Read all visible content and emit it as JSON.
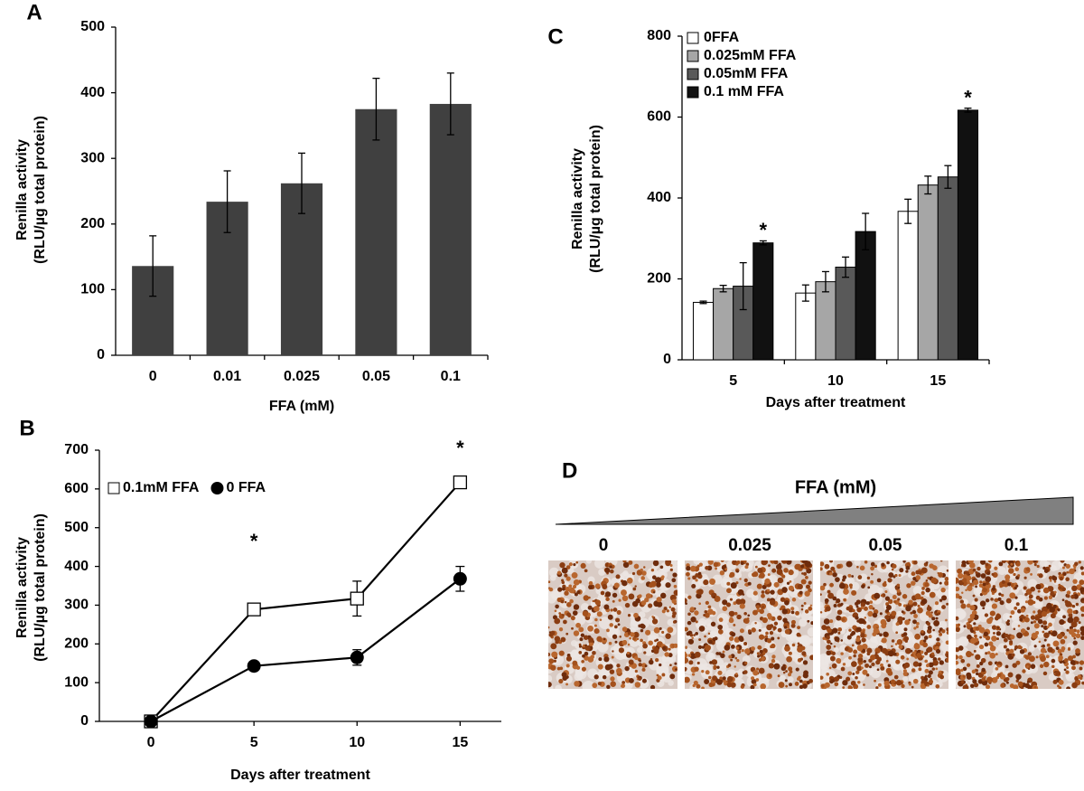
{
  "chart_data": [
    {
      "panel": "A",
      "type": "bar",
      "y_label": [
        "Renilla activity",
        "(RLU/µg total protein)"
      ],
      "x_label": "FFA (mM)",
      "categories": [
        "0",
        "0.01",
        "0.025",
        "0.05",
        "0.1"
      ],
      "values": [
        136,
        234,
        262,
        375,
        383
      ],
      "errors": [
        46,
        47,
        46,
        47,
        47
      ],
      "color": "#404040",
      "ylim": [
        0,
        500
      ],
      "yticks": [
        0,
        100,
        200,
        300,
        400,
        500
      ]
    },
    {
      "panel": "B",
      "type": "line",
      "y_label": [
        "Renilla activity",
        "(RLU/µg total protein)"
      ],
      "x_label": "Days after treatment",
      "x": [
        0,
        5,
        10,
        15
      ],
      "xlim": [
        -2.5,
        17
      ],
      "xticks": [
        0,
        5,
        10,
        15
      ],
      "ylim": [
        0,
        700
      ],
      "yticks": [
        0,
        100,
        200,
        300,
        400,
        500,
        600,
        700
      ],
      "series": [
        {
          "name": "0.1mM FFA",
          "color": "#ffffff",
          "marker": "square",
          "values": [
            0,
            289,
            317,
            617
          ],
          "errors": [
            0,
            5,
            45,
            5
          ]
        },
        {
          "name": "0 FFA",
          "color": "#000000",
          "marker": "circle",
          "values": [
            0,
            143,
            165,
            368
          ],
          "errors": [
            0,
            5,
            20,
            32
          ]
        }
      ],
      "annotations": [
        {
          "text": "*",
          "x": 5
        },
        {
          "text": "*",
          "x": 15
        }
      ]
    },
    {
      "panel": "C",
      "type": "grouped_bar",
      "y_label": [
        "Renilla activity",
        "(RLU/µg total protein)"
      ],
      "x_label": "Days after treatment",
      "categories": [
        "5",
        "10",
        "15"
      ],
      "ylim": [
        0,
        800
      ],
      "yticks": [
        0,
        200,
        400,
        600,
        800
      ],
      "series": [
        {
          "name": "0FFA",
          "color": "#ffffff",
          "values": [
            142,
            165,
            367
          ],
          "errors": [
            3,
            20,
            30
          ]
        },
        {
          "name": "0.025mM FFA",
          "color": "#a6a6a6",
          "values": [
            176,
            193,
            432
          ],
          "errors": [
            8,
            25,
            22
          ]
        },
        {
          "name": "0.05mM FFA",
          "color": "#595959",
          "values": [
            182,
            229,
            452
          ],
          "errors": [
            58,
            25,
            28
          ]
        },
        {
          "name": "0.1 mM FFA",
          "color": "#111111",
          "values": [
            289,
            317,
            617
          ],
          "errors": [
            5,
            45,
            5
          ]
        }
      ],
      "annotations": [
        {
          "text": "*",
          "category": "5"
        },
        {
          "text": "*",
          "category": "15"
        }
      ]
    }
  ],
  "panel_d": {
    "label": "D",
    "title": "FFA (mM)",
    "labels": [
      "0",
      "0.025",
      "0.05",
      "0.1"
    ]
  }
}
